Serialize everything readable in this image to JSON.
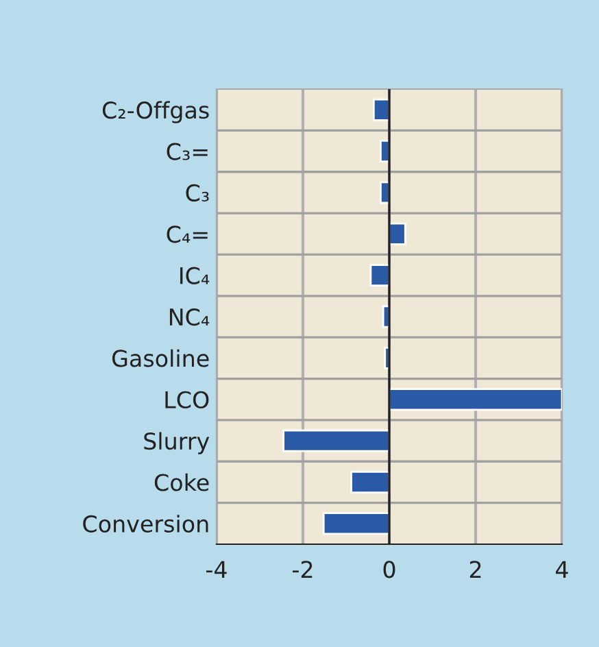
{
  "chart_data": {
    "type": "bar",
    "orientation": "horizontal",
    "categories": [
      "C₂-Offgas",
      "C₃=",
      "C₃",
      "C₄=",
      "IC₄",
      "NC₄",
      "Gasoline",
      "LCO",
      "Slurry",
      "Coke",
      "Conversion"
    ],
    "values": [
      -0.36,
      -0.2,
      -0.2,
      0.37,
      -0.43,
      -0.14,
      -0.1,
      4.0,
      -2.45,
      -0.88,
      -1.52
    ],
    "color": "#2a5aa6",
    "xlim": [
      -4,
      4
    ],
    "xticks": [
      -4,
      -2,
      0,
      2,
      4
    ],
    "grid": true,
    "ref_lines": [
      {
        "axis": "x",
        "value": 0,
        "color": "#222222"
      }
    ]
  }
}
